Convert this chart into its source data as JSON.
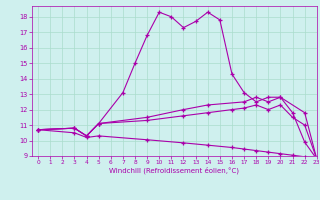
{
  "xlabel": "Windchill (Refroidissement éolien,°C)",
  "background_color": "#cff0ee",
  "grid_color": "#aaddcc",
  "line_color": "#aa00aa",
  "xlim": [
    -0.5,
    23
  ],
  "ylim": [
    9,
    18.7
  ],
  "yticks": [
    9,
    10,
    11,
    12,
    13,
    14,
    15,
    16,
    17,
    18
  ],
  "xticks": [
    0,
    1,
    2,
    3,
    4,
    5,
    6,
    7,
    8,
    9,
    10,
    11,
    12,
    13,
    14,
    15,
    16,
    17,
    18,
    19,
    20,
    21,
    22,
    23
  ],
  "line1_x": [
    0,
    3,
    4,
    5,
    7,
    8,
    9,
    10,
    11,
    12,
    13,
    14,
    15,
    16,
    17,
    18,
    19,
    20,
    21,
    22,
    23
  ],
  "line1_y": [
    10.7,
    10.8,
    10.3,
    11.1,
    13.1,
    15.0,
    16.8,
    18.3,
    18.0,
    17.3,
    17.7,
    18.3,
    17.8,
    14.3,
    13.1,
    12.5,
    12.8,
    12.8,
    11.8,
    9.9,
    8.8
  ],
  "line2_x": [
    0,
    3,
    4,
    5,
    9,
    12,
    14,
    17,
    18,
    19,
    20,
    22,
    23
  ],
  "line2_y": [
    10.7,
    10.8,
    10.3,
    11.1,
    11.5,
    12.0,
    12.3,
    12.5,
    12.8,
    12.5,
    12.8,
    11.8,
    8.8
  ],
  "line3_x": [
    0,
    3,
    4,
    5,
    9,
    12,
    14,
    16,
    17,
    18,
    19,
    20,
    21,
    22,
    23
  ],
  "line3_y": [
    10.7,
    10.8,
    10.3,
    11.1,
    11.3,
    11.6,
    11.8,
    12.0,
    12.1,
    12.3,
    12.0,
    12.3,
    11.5,
    11.0,
    8.8
  ],
  "line4_x": [
    0,
    3,
    4,
    5,
    9,
    12,
    14,
    16,
    17,
    18,
    19,
    20,
    21,
    22,
    23
  ],
  "line4_y": [
    10.7,
    10.5,
    10.2,
    10.3,
    10.05,
    9.85,
    9.7,
    9.55,
    9.45,
    9.35,
    9.25,
    9.15,
    9.05,
    8.95,
    8.8
  ]
}
